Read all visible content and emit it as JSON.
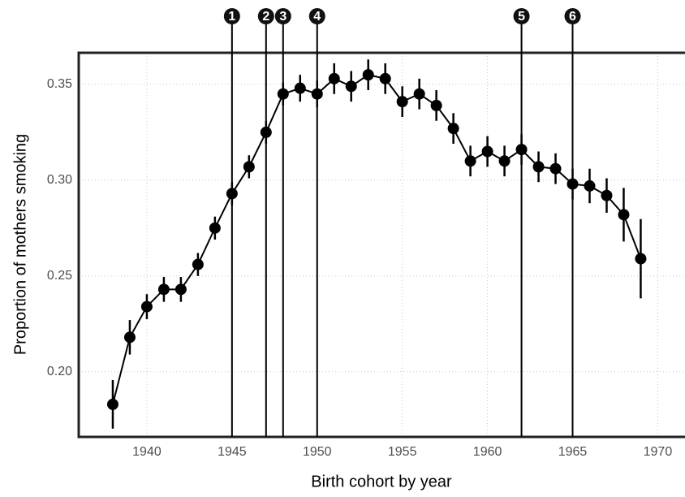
{
  "chart_data": {
    "type": "line",
    "x_label": "Birth cohort by year",
    "y_label": "Proportion of mothers smoking",
    "x": [
      1938,
      1939,
      1940,
      1941,
      1942,
      1943,
      1944,
      1945,
      1946,
      1947,
      1948,
      1949,
      1950,
      1951,
      1952,
      1953,
      1954,
      1955,
      1956,
      1957,
      1958,
      1959,
      1960,
      1961,
      1962,
      1963,
      1964,
      1965,
      1966,
      1967,
      1968,
      1969
    ],
    "series": [
      {
        "color": "#000000",
        "values": [
          0.183,
          0.218,
          0.234,
          0.243,
          0.243,
          0.256,
          0.275,
          0.293,
          0.307,
          0.325,
          0.345,
          0.348,
          0.345,
          0.353,
          0.349,
          0.355,
          0.353,
          0.341,
          0.345,
          0.339,
          0.327,
          0.31,
          0.315,
          0.31,
          0.316,
          0.307,
          0.306,
          0.298,
          0.297,
          0.292,
          0.282,
          0.259
        ],
        "errors": [
          0.0127,
          0.009,
          0.0065,
          0.0065,
          0.0065,
          0.006,
          0.006,
          0.006,
          0.006,
          0.006,
          0.006,
          0.007,
          0.007,
          0.008,
          0.008,
          0.008,
          0.008,
          0.008,
          0.008,
          0.008,
          0.008,
          0.008,
          0.008,
          0.008,
          0.008,
          0.008,
          0.008,
          0.008,
          0.009,
          0.009,
          0.014,
          0.0207
        ]
      }
    ],
    "annotations": [
      {
        "x": 1945,
        "label": "1"
      },
      {
        "x": 1947,
        "label": "2"
      },
      {
        "x": 1948,
        "label": "3"
      },
      {
        "x": 1950,
        "label": "4"
      },
      {
        "x": 1962,
        "label": "5"
      },
      {
        "x": 1965,
        "label": "6"
      }
    ],
    "xlim": [
      1936,
      1971.6
    ],
    "ylim": [
      0.166,
      0.3665
    ],
    "xticks": [
      1940,
      1945,
      1950,
      1955,
      1960,
      1965,
      1970
    ],
    "yticks": [
      {
        "value": 0.2,
        "label": "0.20"
      },
      0.25,
      {
        "value": 0.3,
        "label": "0.30"
      },
      0.35
    ],
    "grid": true
  }
}
